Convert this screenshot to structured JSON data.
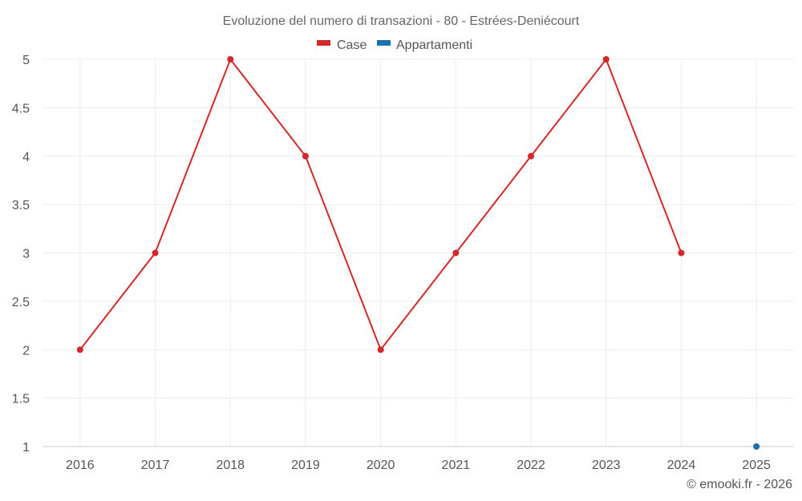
{
  "chart_data": {
    "type": "line",
    "title": "Evoluzione del numero di transazioni - 80 - Estrées-Deniécourt",
    "categories": [
      "2016",
      "2017",
      "2018",
      "2019",
      "2020",
      "2021",
      "2022",
      "2023",
      "2024",
      "2025"
    ],
    "series": [
      {
        "name": "Case",
        "color": "#d62728",
        "values": [
          2,
          3,
          5,
          4,
          2,
          3,
          4,
          5,
          3,
          null
        ]
      },
      {
        "name": "Appartamenti",
        "color": "#1f6fa8",
        "values": [
          null,
          null,
          null,
          null,
          null,
          null,
          null,
          null,
          null,
          1
        ]
      }
    ],
    "y_ticks": [
      "1",
      "1.5",
      "2",
      "2.5",
      "3",
      "3.5",
      "4",
      "4.5",
      "5"
    ],
    "ylim": [
      1,
      5
    ],
    "legend_position": "top-center",
    "grid": true
  },
  "credit": "© emooki.fr - 2026"
}
